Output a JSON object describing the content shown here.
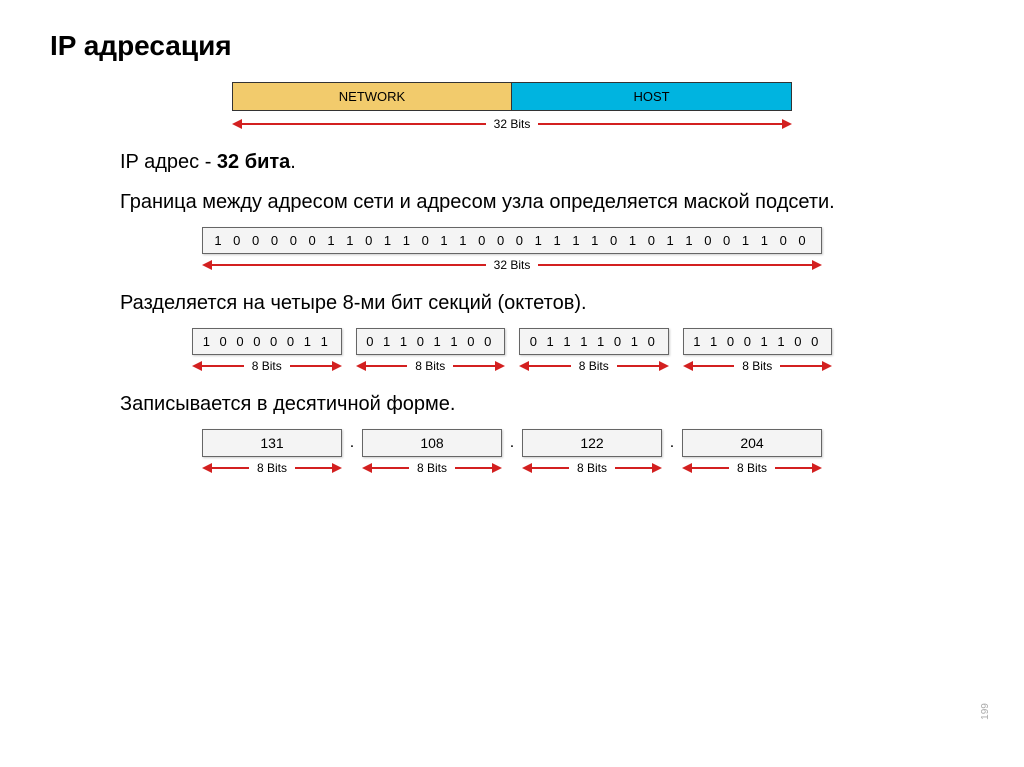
{
  "title": "IP адресация",
  "header": {
    "network_label": "NETWORK",
    "host_label": "HOST",
    "bits_label": "32 Bits",
    "colors": {
      "network_bg": "#f2cb6c",
      "host_bg": "#00b4e0",
      "arrow": "#d32020",
      "box_bg": "#f4f4f4",
      "box_border": "#666666"
    }
  },
  "text": {
    "line1_prefix": "IP адрес -  ",
    "line1_bold": "32 бита",
    "line1_suffix": ".",
    "line2": "Граница между адресом сети и адресом узла определяется маской подсети.",
    "line3": "Разделяется на четыре 8-ми бит секций (октетов).",
    "line4": "Записывается в десятичной форме."
  },
  "bits32": {
    "value": "1 0 0 0 0 0 1 1 0 1 1 0 1 1 0 0 0 1 1 1 1 0 1 0 1 1 0 0 1 1 0 0",
    "label": "32 Bits"
  },
  "octets": {
    "values": [
      "1 0 0 0 0 0 1 1",
      "0 1 1 0 1 1 0 0",
      "0 1 1 1 1 0 1 0",
      "1 1 0 0 1 1 0 0"
    ],
    "label": "8 Bits"
  },
  "decimal": {
    "values": [
      "131",
      "108",
      "122",
      "204"
    ],
    "dot": ".",
    "label": "8 Bits"
  },
  "slide_number": "199"
}
